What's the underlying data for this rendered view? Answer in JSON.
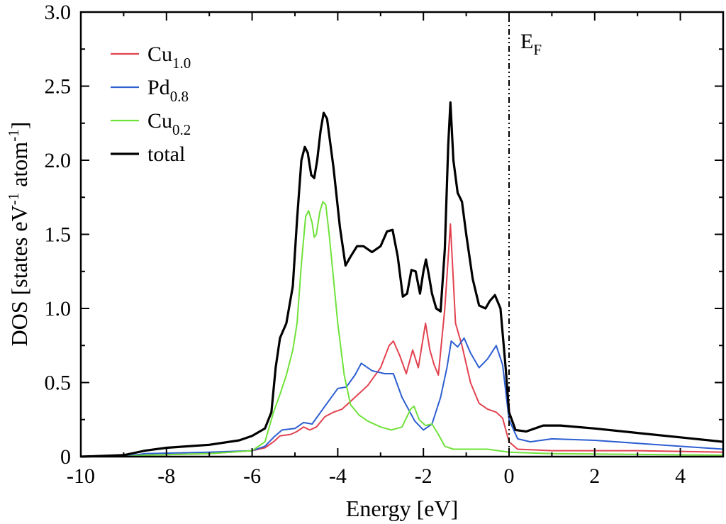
{
  "chart_data": {
    "type": "line",
    "xlabel": "Energy [eV]",
    "ylabel": {
      "main": "DOS [states eV",
      "exp1": "-1",
      "middle": " atom",
      "exp2": "-1",
      "end": "]"
    },
    "xlim": [
      -10,
      5
    ],
    "ylim": [
      0,
      3.0
    ],
    "xticks": [
      -10,
      -8,
      -6,
      -4,
      -2,
      0,
      2,
      4
    ],
    "xtick_labels": [
      "-10",
      "-8",
      "-6",
      "-4",
      "-2",
      "0",
      "2",
      "4"
    ],
    "yticks": [
      0,
      0.5,
      1.0,
      1.5,
      2.0,
      2.5,
      3.0
    ],
    "ytick_labels": [
      "0",
      "0.5",
      "1.0",
      "1.5",
      "2.0",
      "2.5",
      "3.0"
    ],
    "fermi": {
      "x": 0,
      "label": "E",
      "sub": "F"
    },
    "series": [
      {
        "name": "Cu",
        "sub": "1.0",
        "color": "#e2424f",
        "points": [
          [
            -10,
            0
          ],
          [
            -9,
            0
          ],
          [
            -8.5,
            0.01
          ],
          [
            -7,
            0.02
          ],
          [
            -6,
            0.04
          ],
          [
            -5.7,
            0.06
          ],
          [
            -5.5,
            0.1
          ],
          [
            -5.35,
            0.14
          ],
          [
            -5.1,
            0.15
          ],
          [
            -4.95,
            0.17
          ],
          [
            -4.8,
            0.2
          ],
          [
            -4.65,
            0.18
          ],
          [
            -4.5,
            0.2
          ],
          [
            -4.3,
            0.27
          ],
          [
            -4.1,
            0.3
          ],
          [
            -3.9,
            0.32
          ],
          [
            -3.6,
            0.4
          ],
          [
            -3.3,
            0.48
          ],
          [
            -3.0,
            0.6
          ],
          [
            -2.8,
            0.75
          ],
          [
            -2.7,
            0.78
          ],
          [
            -2.55,
            0.68
          ],
          [
            -2.4,
            0.56
          ],
          [
            -2.25,
            0.72
          ],
          [
            -2.12,
            0.6
          ],
          [
            -1.95,
            0.9
          ],
          [
            -1.85,
            0.72
          ],
          [
            -1.75,
            0.62
          ],
          [
            -1.65,
            0.55
          ],
          [
            -1.5,
            1.0
          ],
          [
            -1.37,
            1.57
          ],
          [
            -1.25,
            0.9
          ],
          [
            -1.1,
            0.75
          ],
          [
            -0.9,
            0.5
          ],
          [
            -0.7,
            0.36
          ],
          [
            -0.5,
            0.32
          ],
          [
            -0.3,
            0.3
          ],
          [
            -0.15,
            0.26
          ],
          [
            0,
            0.1
          ],
          [
            0.2,
            0.05
          ],
          [
            1,
            0.04
          ],
          [
            3,
            0.04
          ],
          [
            5,
            0.03
          ]
        ]
      },
      {
        "name": "Pd",
        "sub": "0.8",
        "color": "#2d5fd1",
        "points": [
          [
            -10,
            0
          ],
          [
            -9,
            0
          ],
          [
            -8.5,
            0.02
          ],
          [
            -7,
            0.03
          ],
          [
            -6,
            0.04
          ],
          [
            -5.7,
            0.07
          ],
          [
            -5.5,
            0.13
          ],
          [
            -5.3,
            0.18
          ],
          [
            -5.0,
            0.19
          ],
          [
            -4.8,
            0.23
          ],
          [
            -4.6,
            0.22
          ],
          [
            -4.4,
            0.3
          ],
          [
            -4.2,
            0.38
          ],
          [
            -4.0,
            0.46
          ],
          [
            -3.8,
            0.47
          ],
          [
            -3.6,
            0.55
          ],
          [
            -3.45,
            0.63
          ],
          [
            -3.2,
            0.58
          ],
          [
            -2.9,
            0.56
          ],
          [
            -2.7,
            0.56
          ],
          [
            -2.5,
            0.4
          ],
          [
            -2.2,
            0.24
          ],
          [
            -2.0,
            0.18
          ],
          [
            -1.8,
            0.22
          ],
          [
            -1.6,
            0.4
          ],
          [
            -1.45,
            0.6
          ],
          [
            -1.35,
            0.78
          ],
          [
            -1.2,
            0.74
          ],
          [
            -1.05,
            0.8
          ],
          [
            -0.9,
            0.7
          ],
          [
            -0.7,
            0.6
          ],
          [
            -0.5,
            0.66
          ],
          [
            -0.3,
            0.75
          ],
          [
            -0.15,
            0.62
          ],
          [
            0,
            0.25
          ],
          [
            0.2,
            0.12
          ],
          [
            0.5,
            0.1
          ],
          [
            1,
            0.12
          ],
          [
            2,
            0.11
          ],
          [
            3,
            0.09
          ],
          [
            4,
            0.07
          ],
          [
            5,
            0.05
          ]
        ]
      },
      {
        "name": "Cu",
        "sub": "0.2",
        "color": "#6fe23a",
        "points": [
          [
            -10,
            0
          ],
          [
            -9,
            0
          ],
          [
            -8.5,
            0.01
          ],
          [
            -7,
            0.02
          ],
          [
            -6,
            0.04
          ],
          [
            -5.7,
            0.1
          ],
          [
            -5.5,
            0.3
          ],
          [
            -5.35,
            0.42
          ],
          [
            -5.2,
            0.55
          ],
          [
            -5.05,
            0.72
          ],
          [
            -4.95,
            0.9
          ],
          [
            -4.85,
            1.3
          ],
          [
            -4.75,
            1.62
          ],
          [
            -4.68,
            1.66
          ],
          [
            -4.6,
            1.58
          ],
          [
            -4.55,
            1.48
          ],
          [
            -4.5,
            1.5
          ],
          [
            -4.42,
            1.65
          ],
          [
            -4.35,
            1.72
          ],
          [
            -4.28,
            1.7
          ],
          [
            -4.2,
            1.5
          ],
          [
            -4.1,
            1.2
          ],
          [
            -4.0,
            0.9
          ],
          [
            -3.85,
            0.55
          ],
          [
            -3.7,
            0.35
          ],
          [
            -3.5,
            0.28
          ],
          [
            -3.3,
            0.24
          ],
          [
            -3.0,
            0.2
          ],
          [
            -2.75,
            0.18
          ],
          [
            -2.5,
            0.2
          ],
          [
            -2.3,
            0.32
          ],
          [
            -2.22,
            0.34
          ],
          [
            -2.1,
            0.25
          ],
          [
            -1.95,
            0.21
          ],
          [
            -1.8,
            0.22
          ],
          [
            -1.65,
            0.15
          ],
          [
            -1.5,
            0.07
          ],
          [
            -1.3,
            0.05
          ],
          [
            -0.5,
            0.05
          ],
          [
            0,
            0.03
          ],
          [
            1,
            0.02
          ],
          [
            5,
            0.01
          ]
        ]
      },
      {
        "name": "total",
        "sub": "",
        "color": "#000000",
        "points": [
          [
            -10,
            0
          ],
          [
            -9,
            0.01
          ],
          [
            -8.5,
            0.04
          ],
          [
            -8,
            0.06
          ],
          [
            -7,
            0.08
          ],
          [
            -6.3,
            0.11
          ],
          [
            -6,
            0.14
          ],
          [
            -5.7,
            0.19
          ],
          [
            -5.55,
            0.3
          ],
          [
            -5.45,
            0.6
          ],
          [
            -5.35,
            0.8
          ],
          [
            -5.2,
            0.9
          ],
          [
            -5.05,
            1.15
          ],
          [
            -4.95,
            1.6
          ],
          [
            -4.85,
            2.0
          ],
          [
            -4.77,
            2.09
          ],
          [
            -4.7,
            2.05
          ],
          [
            -4.62,
            1.9
          ],
          [
            -4.55,
            1.88
          ],
          [
            -4.48,
            2.0
          ],
          [
            -4.4,
            2.2
          ],
          [
            -4.33,
            2.32
          ],
          [
            -4.25,
            2.28
          ],
          [
            -4.1,
            1.95
          ],
          [
            -3.95,
            1.55
          ],
          [
            -3.82,
            1.29
          ],
          [
            -3.7,
            1.35
          ],
          [
            -3.55,
            1.42
          ],
          [
            -3.4,
            1.42
          ],
          [
            -3.2,
            1.38
          ],
          [
            -3.0,
            1.42
          ],
          [
            -2.85,
            1.52
          ],
          [
            -2.72,
            1.53
          ],
          [
            -2.6,
            1.35
          ],
          [
            -2.48,
            1.08
          ],
          [
            -2.38,
            1.1
          ],
          [
            -2.28,
            1.26
          ],
          [
            -2.18,
            1.25
          ],
          [
            -2.08,
            1.1
          ],
          [
            -2.0,
            1.25
          ],
          [
            -1.94,
            1.33
          ],
          [
            -1.87,
            1.22
          ],
          [
            -1.8,
            1.1
          ],
          [
            -1.7,
            1.0
          ],
          [
            -1.6,
            0.98
          ],
          [
            -1.5,
            1.4
          ],
          [
            -1.42,
            2.1
          ],
          [
            -1.37,
            2.39
          ],
          [
            -1.3,
            2.0
          ],
          [
            -1.2,
            1.78
          ],
          [
            -1.1,
            1.72
          ],
          [
            -1.0,
            1.5
          ],
          [
            -0.85,
            1.2
          ],
          [
            -0.7,
            1.02
          ],
          [
            -0.55,
            1.0
          ],
          [
            -0.45,
            1.05
          ],
          [
            -0.33,
            1.09
          ],
          [
            -0.2,
            1.0
          ],
          [
            -0.08,
            0.6
          ],
          [
            0,
            0.3
          ],
          [
            0.15,
            0.18
          ],
          [
            0.4,
            0.17
          ],
          [
            0.8,
            0.21
          ],
          [
            1.2,
            0.21
          ],
          [
            2,
            0.19
          ],
          [
            3,
            0.16
          ],
          [
            4,
            0.13
          ],
          [
            5,
            0.1
          ]
        ]
      }
    ],
    "legend_position": "top-left"
  }
}
